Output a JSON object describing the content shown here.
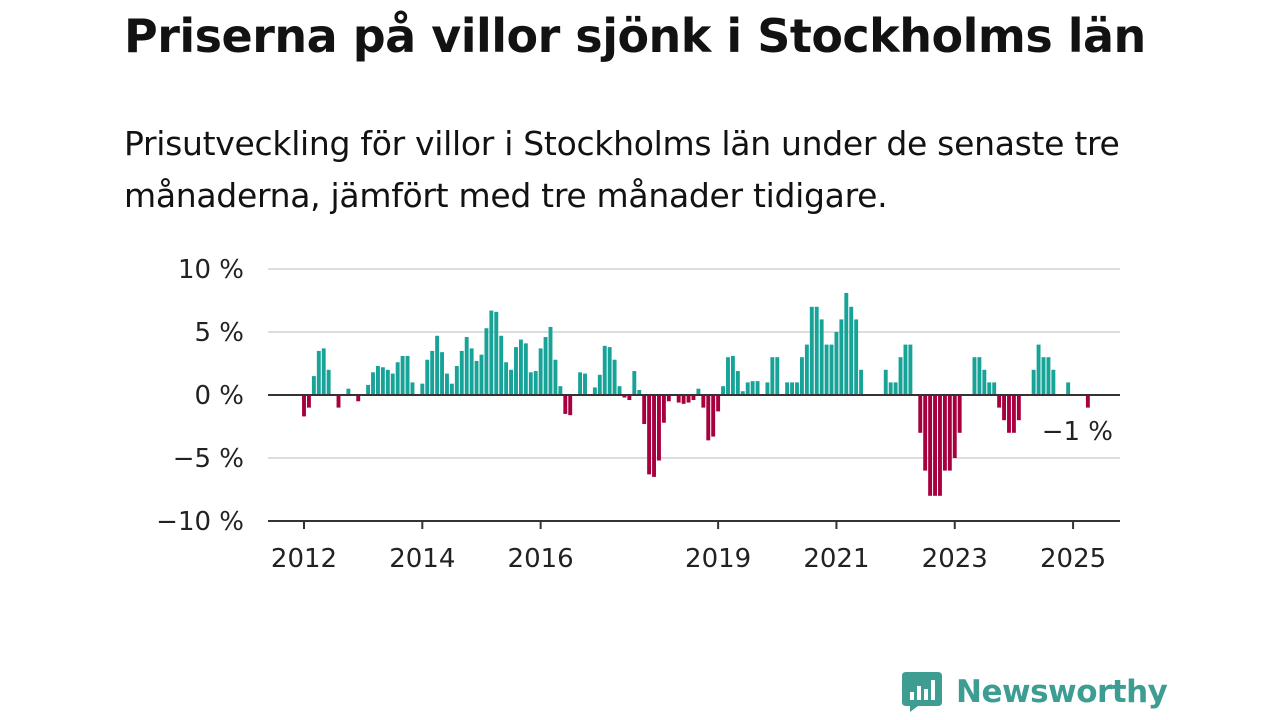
{
  "title": "Priserna på villor sjönk i Stockholms län",
  "subtitle": "Prisutveckling för villor i Stockholms län under de senaste tre månaderna, jämfört med tre månader tidigare.",
  "brand": {
    "name": "Newsworthy",
    "color": "#3d9d93",
    "icon": "newsworthy-bar-chart-bubble-icon"
  },
  "chart_data": {
    "type": "bar",
    "title": "",
    "xlabel": "",
    "ylabel": "",
    "ylim": [
      -10,
      10
    ],
    "y_ticks": [
      10,
      5,
      0,
      -5,
      -10
    ],
    "y_tick_labels": [
      "10 %",
      "5 %",
      "0 %",
      "−5 %",
      "−10 %"
    ],
    "x_tick_labels": [
      "2012",
      "2014",
      "2016",
      "2019",
      "2021",
      "2023",
      "2025"
    ],
    "last_value_label": "−1 %",
    "colors": {
      "positive": "#17a398",
      "negative": "#a8003f",
      "grid": "#dddddd",
      "zero_line": "#333333"
    },
    "grid": true,
    "start": "2012-01",
    "frequency": "monthly",
    "values": [
      -1.7,
      -1,
      1.5,
      3.5,
      3.7,
      2,
      0,
      -1,
      0,
      0.5,
      0,
      -0.5,
      0,
      0.8,
      1.8,
      2.3,
      2.2,
      2,
      1.7,
      2.6,
      3.1,
      3.1,
      1,
      0,
      0.9,
      2.8,
      3.5,
      4.7,
      3.4,
      1.7,
      0.9,
      2.3,
      3.5,
      4.6,
      3.7,
      2.7,
      3.2,
      5.3,
      6.7,
      6.6,
      4.7,
      2.6,
      2,
      3.8,
      4.4,
      4.1,
      1.8,
      1.9,
      3.7,
      4.6,
      5.4,
      2.8,
      0.7,
      -1.5,
      -1.6,
      0,
      1.8,
      1.7,
      0,
      0.6,
      1.6,
      3.9,
      3.8,
      2.8,
      0.7,
      -0.2,
      -0.4,
      1.9,
      0.4,
      -2.3,
      -6.3,
      -6.5,
      -5.2,
      -2.2,
      -0.5,
      0,
      -0.6,
      -0.7,
      -0.6,
      -0.4,
      0.5,
      -1,
      -3.6,
      -3.3,
      -1.3,
      0.7,
      3,
      3.1,
      1.9,
      0.3,
      1,
      1.1,
      1.1,
      0,
      1,
      3,
      3,
      0,
      1,
      1,
      1,
      3,
      4,
      7,
      7,
      6,
      4,
      4,
      5,
      6,
      8.1,
      7,
      6,
      2,
      0,
      0,
      0,
      0,
      2,
      1,
      1,
      3,
      4,
      4,
      0,
      -3,
      -6,
      -8,
      -8,
      -8,
      -6,
      -6,
      -5,
      -3,
      0,
      0,
      3,
      3,
      2,
      1,
      1,
      -1,
      -2,
      -3,
      -3,
      -2,
      0,
      0,
      2,
      4,
      3,
      3,
      2,
      0,
      0,
      1,
      0,
      0,
      0,
      -1
    ]
  }
}
